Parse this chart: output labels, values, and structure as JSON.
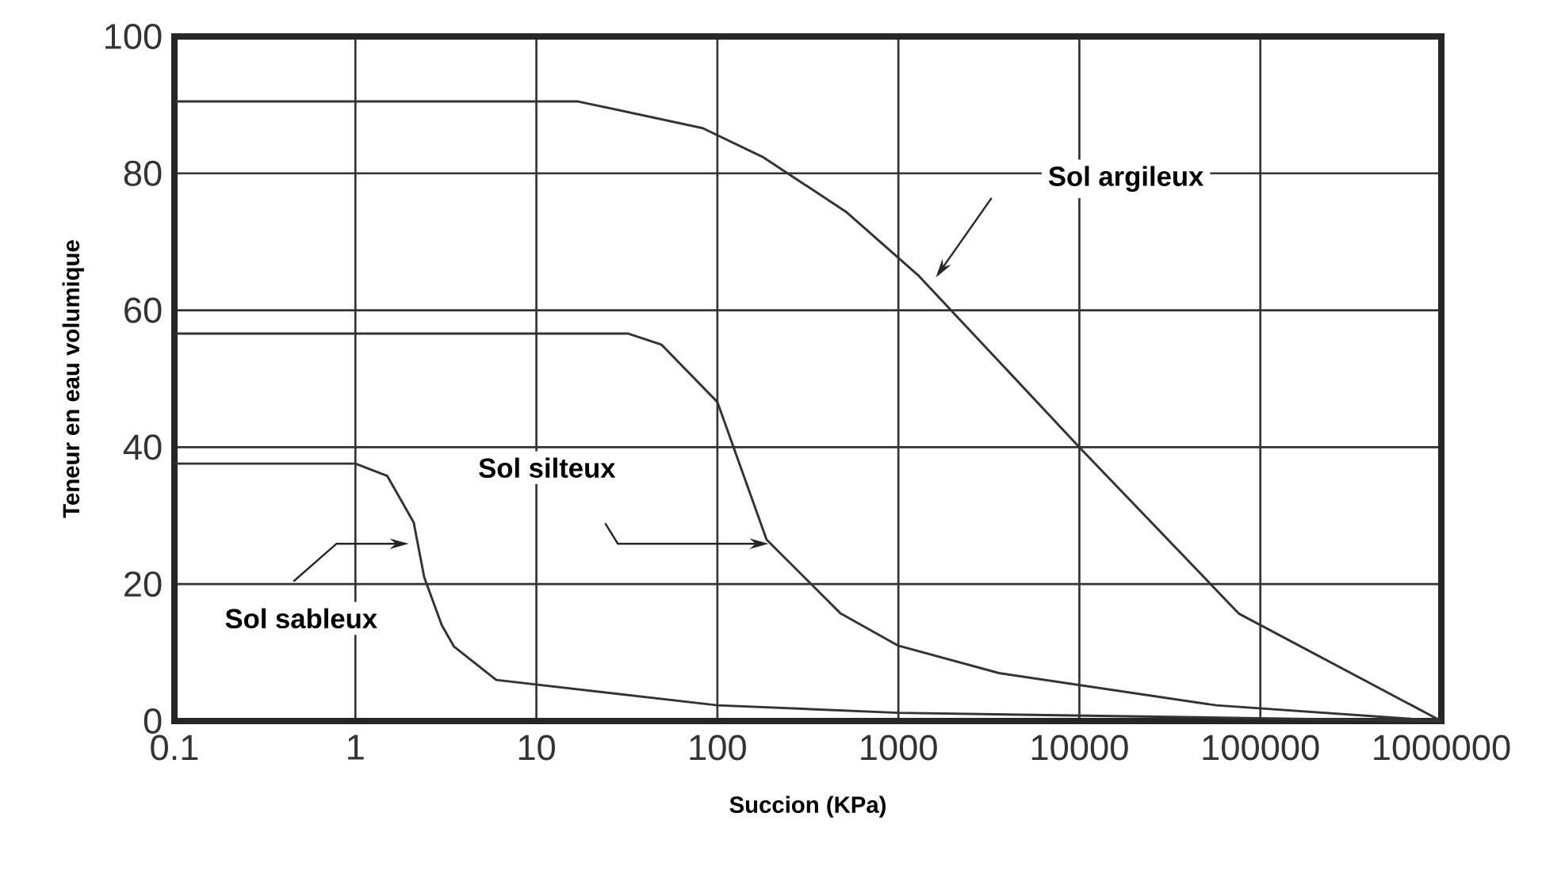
{
  "chart_data": {
    "type": "line",
    "xlabel": "Succion (KPa)",
    "ylabel": "Teneur en eau volumique",
    "xlim": [
      0.1,
      1000000
    ],
    "ylim": [
      0,
      100
    ],
    "xticks": [
      0.1,
      1,
      10,
      100,
      1000,
      10000,
      100000,
      1000000
    ],
    "yticks": [
      0,
      20,
      40,
      60,
      80,
      100
    ],
    "log": "x",
    "grid": true,
    "marker": "none",
    "line_style": "solid",
    "series": [
      {
        "color": "#333333",
        "x": [
          0.1,
          17,
          83,
          178,
          513,
          1300,
          10000,
          76000,
          1000000
        ],
        "values": [
          90.5,
          90.5,
          86.6,
          82.4,
          74.4,
          65,
          40,
          15.7,
          0
        ]
      },
      {
        "color": "#333333",
        "x": [
          0.1,
          32,
          49,
          100,
          187,
          480,
          1000,
          3600,
          57000,
          1000000
        ],
        "values": [
          56.6,
          56.6,
          55,
          46.6,
          26.5,
          15.7,
          11,
          7,
          2.3,
          0
        ]
      },
      {
        "color": "#333333",
        "x": [
          0.1,
          1,
          1.5,
          2.1,
          2.4,
          3,
          3.5,
          6,
          100,
          1000,
          1000000
        ],
        "values": [
          37.6,
          37.6,
          35.8,
          29,
          21,
          14,
          10.9,
          6,
          2.3,
          1.2,
          0
        ]
      }
    ],
    "annotations": [
      "Sol argileux",
      "Sol silteux",
      "Sol sableux"
    ]
  }
}
